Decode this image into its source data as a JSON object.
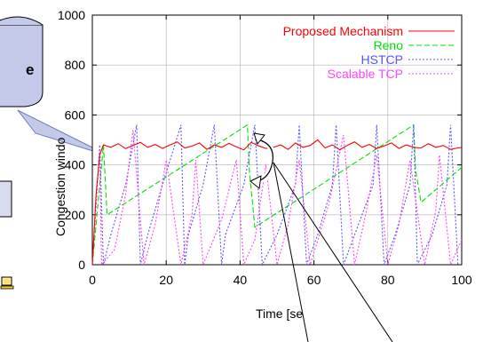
{
  "chart_data": {
    "type": "line",
    "xlabel": "Time [se",
    "ylabel": "Congestion windo",
    "xlim": [
      0,
      100
    ],
    "ylim": [
      0,
      1000
    ],
    "x_ticks": [
      "0",
      "20",
      "40",
      "60",
      "80",
      "100"
    ],
    "y_ticks": [
      "0",
      "200",
      "400",
      "600",
      "800",
      "1000"
    ],
    "legend_position": "top-right",
    "series": [
      {
        "name": "Proposed Mechanism",
        "color": "#ff0000",
        "style": "solid",
        "x": [
          0,
          1,
          2,
          3,
          5,
          7,
          9,
          11,
          13,
          15,
          17,
          19,
          21,
          23,
          25,
          27,
          29,
          31,
          33,
          35,
          37,
          39,
          41,
          43,
          45,
          47,
          49,
          51,
          53,
          55,
          57,
          59,
          61,
          63,
          65,
          67,
          69,
          71,
          73,
          75,
          77,
          79,
          81,
          83,
          85,
          87,
          89,
          91,
          93,
          95,
          97,
          99,
          100
        ],
        "y": [
          0,
          280,
          440,
          480,
          470,
          485,
          465,
          478,
          490,
          470,
          482,
          466,
          480,
          492,
          468,
          475,
          488,
          462,
          480,
          470,
          486,
          472,
          460,
          490,
          476,
          466,
          470,
          480,
          462,
          488,
          470,
          478,
          500,
          468,
          480,
          460,
          478,
          492,
          470,
          482,
          466,
          476,
          488,
          466,
          480,
          470,
          468,
          485,
          470,
          478,
          462,
          468,
          470
        ]
      },
      {
        "name": "Reno",
        "color": "#00e000",
        "style": "dashed",
        "x": [
          0,
          3,
          4,
          42,
          42.5,
          44,
          87,
          87.5,
          89,
          100
        ],
        "y": [
          0,
          480,
          200,
          560,
          380,
          150,
          560,
          380,
          250,
          390
        ]
      },
      {
        "name": "HSTCP",
        "color": "#5555ff",
        "style": "dotted",
        "x": [
          0,
          2,
          3,
          5,
          9,
          12,
          13,
          15,
          19,
          24,
          25,
          26,
          30,
          33,
          35,
          36,
          41,
          44,
          46,
          50,
          55,
          56,
          58,
          61,
          65,
          66,
          68,
          71,
          76,
          77,
          79,
          82,
          86,
          87,
          88,
          92,
          96,
          97,
          99
        ],
        "y": [
          0,
          480,
          0,
          120,
          320,
          560,
          0,
          120,
          320,
          560,
          0,
          120,
          320,
          560,
          0,
          120,
          320,
          560,
          0,
          120,
          320,
          560,
          0,
          120,
          320,
          560,
          0,
          120,
          320,
          560,
          0,
          120,
          320,
          560,
          0,
          120,
          320,
          560,
          0
        ]
      },
      {
        "name": "Scalable TCP",
        "color": "#ff44ff",
        "style": "dotted",
        "x": [
          0,
          2,
          2.5,
          6,
          9,
          11,
          14,
          17,
          20,
          24,
          27,
          28,
          30,
          35,
          39,
          41,
          44,
          47,
          50,
          53,
          56,
          59,
          64,
          68,
          71,
          74,
          77,
          80,
          83,
          86,
          90,
          93,
          94,
          97,
          100
        ],
        "y": [
          0,
          460,
          0,
          60,
          280,
          540,
          0,
          160,
          420,
          0,
          200,
          420,
          0,
          180,
          420,
          0,
          100,
          400,
          0,
          160,
          420,
          0,
          240,
          520,
          0,
          200,
          440,
          0,
          160,
          420,
          0,
          220,
          440,
          0,
          100
        ]
      }
    ]
  },
  "callout": {
    "label": "e"
  }
}
